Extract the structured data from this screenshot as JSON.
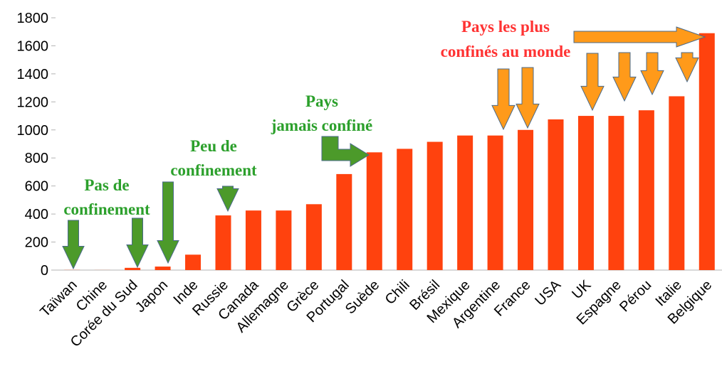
{
  "chart_data": {
    "type": "bar",
    "categories": [
      "Taïwan",
      "Chine",
      "Corée du Sud",
      "Japon",
      "Inde",
      "Russie",
      "Canada",
      "Allemagne",
      "Grèce",
      "Portugal",
      "Suède",
      "Chili",
      "Brésil",
      "Mexique",
      "Argentine",
      "France",
      "USA",
      "UK",
      "Espagne",
      "Pérou",
      "Italie",
      "Belgique"
    ],
    "values": [
      1,
      0.5,
      16,
      25,
      110,
      390,
      425,
      425,
      470,
      685,
      840,
      865,
      915,
      960,
      960,
      1000,
      1075,
      1100,
      1100,
      1140,
      1240,
      1690
    ],
    "color": "#ff420e",
    "ylim": [
      0,
      1800
    ],
    "yticks": [
      0,
      200,
      400,
      600,
      800,
      1000,
      1200,
      1400,
      1600,
      1800
    ],
    "grid": false,
    "annotations": [
      {
        "lines": [
          "Pas de",
          "confinement"
        ],
        "color": "#2ca02c"
      },
      {
        "lines": [
          "Peu de",
          "confinement"
        ],
        "color": "#2ca02c"
      },
      {
        "lines": [
          "Pays",
          "jamais confiné"
        ],
        "color": "#2ca02c"
      },
      {
        "lines": [
          "Pays les plus",
          "confinés au monde"
        ],
        "color": "#ff3333"
      }
    ]
  }
}
